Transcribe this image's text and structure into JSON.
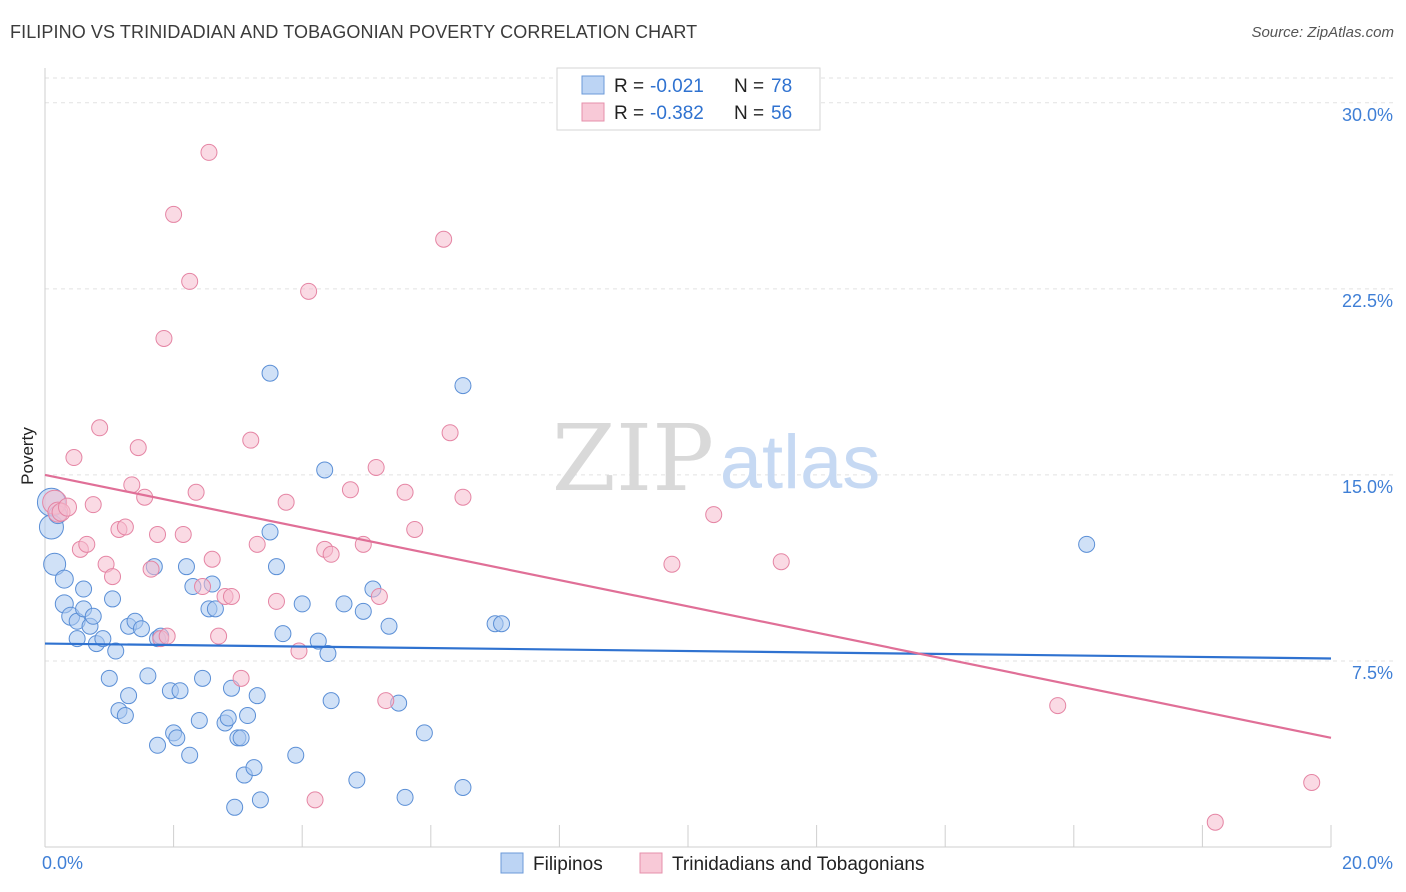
{
  "title": "FILIPINO VS TRINIDADIAN AND TOBAGONIAN POVERTY CORRELATION CHART",
  "source": "Source: ZipAtlas.com",
  "watermark": {
    "zip": "ZIP",
    "atlas": "atlas"
  },
  "chart_data": {
    "type": "scatter",
    "ylabel": "Poverty",
    "xlim": [
      0,
      20
    ],
    "ylim": [
      0,
      31
    ],
    "x_tick_labels": [
      {
        "value": 0,
        "label": "0.0%"
      },
      {
        "value": 20,
        "label": "20.0%"
      }
    ],
    "y_tick_labels": [
      {
        "value": 7.5,
        "label": "7.5%"
      },
      {
        "value": 15,
        "label": "15.0%"
      },
      {
        "value": 22.5,
        "label": "22.5%"
      },
      {
        "value": 30,
        "label": "30.0%"
      }
    ],
    "grid": true,
    "legend_position": "top-center",
    "stats": [
      {
        "r_label": "R =",
        "r_value": "-0.021",
        "n_label": "N =",
        "n_value": "78"
      },
      {
        "r_label": "R =",
        "r_value": "-0.382",
        "n_label": "N =",
        "n_value": "56"
      }
    ],
    "series": [
      {
        "name": "Filipinos",
        "color": "#a9c8f0",
        "stroke": "#5b8fd6",
        "line_color": "#2f72d0",
        "trend": {
          "x": [
            0,
            20
          ],
          "y": [
            8.2,
            7.6
          ]
        },
        "points": [
          [
            0.1,
            13.9,
            14
          ],
          [
            0.1,
            12.9,
            12
          ],
          [
            0.15,
            11.4,
            11
          ],
          [
            0.2,
            13.4,
            9
          ],
          [
            0.3,
            10.8,
            9
          ],
          [
            0.3,
            9.8,
            9
          ],
          [
            0.4,
            9.3,
            9
          ],
          [
            0.5,
            8.4,
            8
          ],
          [
            0.5,
            9.1,
            8
          ],
          [
            0.6,
            9.6,
            8
          ],
          [
            0.6,
            10.4,
            8
          ],
          [
            0.7,
            8.9,
            8
          ],
          [
            0.75,
            9.3,
            8
          ],
          [
            0.8,
            8.2,
            8
          ],
          [
            0.9,
            8.4,
            8
          ],
          [
            1.0,
            6.8,
            8
          ],
          [
            1.05,
            10.0,
            8
          ],
          [
            1.1,
            7.9,
            8
          ],
          [
            1.15,
            5.5,
            8
          ],
          [
            1.25,
            5.3,
            8
          ],
          [
            1.3,
            6.1,
            8
          ],
          [
            1.3,
            8.9,
            8
          ],
          [
            1.4,
            9.1,
            8
          ],
          [
            1.5,
            8.8,
            8
          ],
          [
            1.6,
            6.9,
            8
          ],
          [
            1.7,
            11.3,
            8
          ],
          [
            1.75,
            8.4,
            8
          ],
          [
            1.75,
            4.1,
            8
          ],
          [
            1.8,
            8.5,
            8
          ],
          [
            1.95,
            6.3,
            8
          ],
          [
            2.0,
            4.6,
            8
          ],
          [
            2.05,
            4.4,
            8
          ],
          [
            2.1,
            6.3,
            8
          ],
          [
            2.2,
            11.3,
            8
          ],
          [
            2.25,
            3.7,
            8
          ],
          [
            2.3,
            10.5,
            8
          ],
          [
            2.4,
            5.1,
            8
          ],
          [
            2.45,
            6.8,
            8
          ],
          [
            2.55,
            9.6,
            8
          ],
          [
            2.6,
            10.6,
            8
          ],
          [
            2.65,
            9.6,
            8
          ],
          [
            2.8,
            5.0,
            8
          ],
          [
            2.85,
            5.2,
            8
          ],
          [
            2.9,
            6.4,
            8
          ],
          [
            2.95,
            1.6,
            8
          ],
          [
            3.0,
            4.4,
            8
          ],
          [
            3.05,
            4.4,
            8
          ],
          [
            3.1,
            2.9,
            8
          ],
          [
            3.15,
            5.3,
            8
          ],
          [
            3.25,
            3.2,
            8
          ],
          [
            3.3,
            6.1,
            8
          ],
          [
            3.35,
            1.9,
            8
          ],
          [
            3.5,
            12.7,
            8
          ],
          [
            3.5,
            19.1,
            8
          ],
          [
            3.6,
            11.3,
            8
          ],
          [
            3.7,
            8.6,
            8
          ],
          [
            3.9,
            3.7,
            8
          ],
          [
            4.0,
            9.8,
            8
          ],
          [
            4.25,
            8.3,
            8
          ],
          [
            4.35,
            15.2,
            8
          ],
          [
            4.4,
            7.8,
            8
          ],
          [
            4.45,
            5.9,
            8
          ],
          [
            4.65,
            9.8,
            8
          ],
          [
            4.85,
            2.7,
            8
          ],
          [
            4.95,
            9.5,
            8
          ],
          [
            5.1,
            10.4,
            8
          ],
          [
            5.35,
            8.9,
            8
          ],
          [
            5.5,
            5.8,
            8
          ],
          [
            5.6,
            2.0,
            8
          ],
          [
            5.9,
            4.6,
            8
          ],
          [
            6.5,
            18.6,
            8
          ],
          [
            6.5,
            2.4,
            8
          ],
          [
            7.0,
            9.0,
            8
          ],
          [
            7.1,
            9.0,
            8
          ],
          [
            16.2,
            12.2,
            8
          ]
        ]
      },
      {
        "name": "Trinidadians and Tobagonians",
        "color": "#f6bccd",
        "stroke": "#e585a4",
        "line_color": "#e06f97",
        "trend": {
          "x": [
            0,
            20
          ],
          "y": [
            15.0,
            4.4
          ]
        },
        "points": [
          [
            0.15,
            13.9,
            12
          ],
          [
            0.2,
            13.5,
            10
          ],
          [
            0.25,
            13.5,
            9
          ],
          [
            0.35,
            13.7,
            9
          ],
          [
            0.45,
            15.7,
            8
          ],
          [
            0.55,
            12.0,
            8
          ],
          [
            0.65,
            12.2,
            8
          ],
          [
            0.75,
            13.8,
            8
          ],
          [
            0.85,
            16.9,
            8
          ],
          [
            0.95,
            11.4,
            8
          ],
          [
            1.05,
            10.9,
            8
          ],
          [
            1.15,
            12.8,
            8
          ],
          [
            1.25,
            12.9,
            8
          ],
          [
            1.35,
            14.6,
            8
          ],
          [
            1.45,
            16.1,
            8
          ],
          [
            1.55,
            14.1,
            8
          ],
          [
            1.65,
            11.2,
            8
          ],
          [
            1.75,
            12.6,
            8
          ],
          [
            1.8,
            8.4,
            8
          ],
          [
            1.85,
            20.5,
            8
          ],
          [
            1.9,
            8.5,
            8
          ],
          [
            2.0,
            25.5,
            8
          ],
          [
            2.15,
            12.6,
            8
          ],
          [
            2.25,
            22.8,
            8
          ],
          [
            2.35,
            14.3,
            8
          ],
          [
            2.45,
            10.5,
            8
          ],
          [
            2.55,
            28.0,
            8
          ],
          [
            2.6,
            11.6,
            8
          ],
          [
            2.7,
            8.5,
            8
          ],
          [
            2.8,
            10.1,
            8
          ],
          [
            2.9,
            10.1,
            8
          ],
          [
            3.05,
            6.8,
            8
          ],
          [
            3.2,
            16.4,
            8
          ],
          [
            3.3,
            12.2,
            8
          ],
          [
            3.6,
            9.9,
            8
          ],
          [
            3.75,
            13.9,
            8
          ],
          [
            3.95,
            7.9,
            8
          ],
          [
            4.1,
            22.4,
            8
          ],
          [
            4.2,
            1.9,
            8
          ],
          [
            4.35,
            12.0,
            8
          ],
          [
            4.45,
            11.8,
            8
          ],
          [
            4.75,
            14.4,
            8
          ],
          [
            4.95,
            12.2,
            8
          ],
          [
            5.15,
            15.3,
            8
          ],
          [
            5.2,
            10.1,
            8
          ],
          [
            5.3,
            5.9,
            8
          ],
          [
            5.6,
            14.3,
            8
          ],
          [
            5.75,
            12.8,
            8
          ],
          [
            6.2,
            24.5,
            8
          ],
          [
            6.3,
            16.7,
            8
          ],
          [
            6.5,
            14.1,
            8
          ],
          [
            9.75,
            11.4,
            8
          ],
          [
            10.4,
            13.4,
            8
          ],
          [
            11.45,
            11.5,
            8
          ],
          [
            15.75,
            5.7,
            8
          ],
          [
            18.2,
            1.0,
            8
          ],
          [
            19.7,
            2.6,
            8
          ]
        ]
      }
    ]
  }
}
